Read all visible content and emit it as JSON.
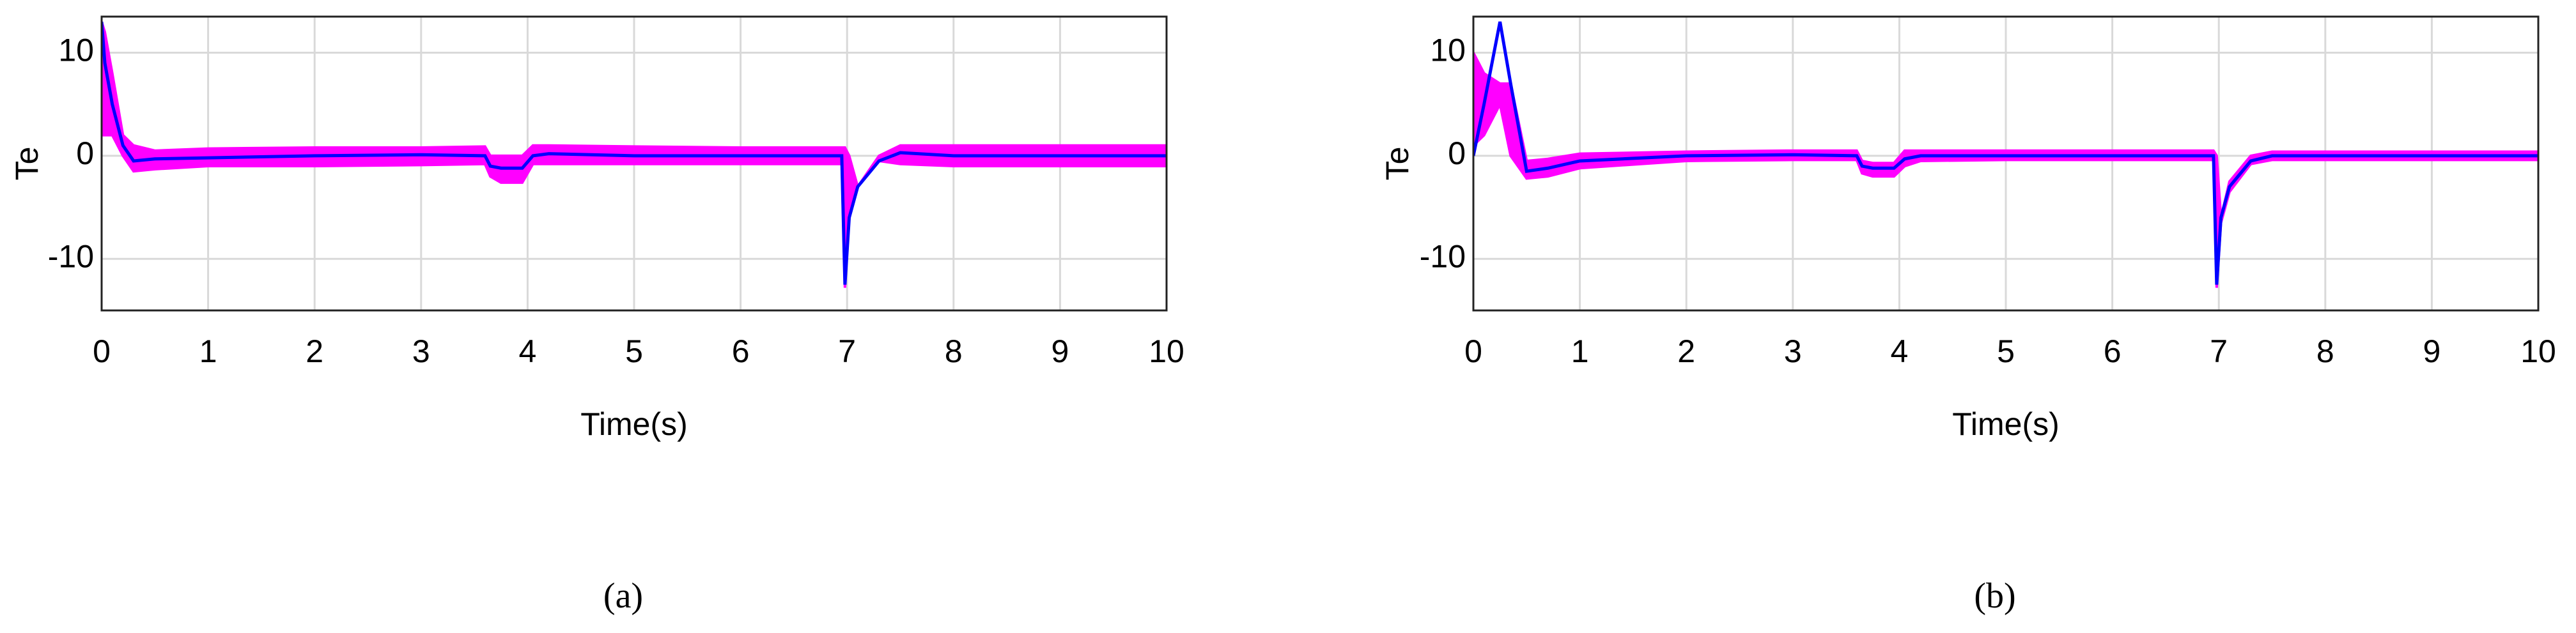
{
  "chart_data": [
    {
      "type": "line",
      "xlabel": "Time(s)",
      "ylabel": "Te",
      "caption": "(a)",
      "grid": true,
      "xlim": [
        0,
        10
      ],
      "xticks": [
        0,
        1,
        2,
        3,
        4,
        5,
        6,
        7,
        8,
        9,
        10
      ],
      "ylim": [
        -15,
        13.5
      ],
      "yticks": [
        -10,
        0,
        10
      ],
      "x": [
        0,
        0.03,
        0.1,
        0.2,
        0.3,
        0.5,
        1,
        2,
        3,
        3.6,
        3.65,
        3.75,
        3.95,
        4.05,
        4.2,
        5,
        6,
        6.95,
        6.98,
        7.02,
        7.1,
        7.3,
        7.5,
        8,
        9,
        10
      ],
      "series": [
        {
          "color": "#ff00ff",
          "values": [
            13,
            12,
            8,
            2,
            1,
            0.5,
            0.7,
            0.8,
            0.8,
            0.9,
            0,
            0,
            0,
            1,
            1,
            0.9,
            0.8,
            0.8,
            0.8,
            0,
            -3,
            0,
            1,
            1,
            1,
            1
          ],
          "low": [
            2,
            2,
            2,
            0,
            -1.5,
            -1.3,
            -1,
            -1,
            -0.9,
            -0.8,
            -2,
            -2.6,
            -2.6,
            -0.8,
            -0.8,
            -0.8,
            -0.8,
            -0.8,
            -12.8,
            -6,
            -3,
            -0.5,
            -0.8,
            -1,
            -1,
            -1
          ]
        },
        {
          "color": "#0000ff",
          "values": [
            13,
            9,
            5,
            1,
            -0.5,
            -0.3,
            -0.2,
            0,
            0.1,
            0,
            -1,
            -1.2,
            -1.2,
            0,
            0.2,
            0,
            0,
            0,
            -12.5,
            -6,
            -3,
            -0.5,
            0.3,
            0,
            0,
            0
          ]
        }
      ]
    },
    {
      "type": "line",
      "xlabel": "Time(s)",
      "ylabel": "Te",
      "caption": "(b)",
      "grid": true,
      "xlim": [
        0,
        10
      ],
      "xticks": [
        0,
        1,
        2,
        3,
        4,
        5,
        6,
        7,
        8,
        9,
        10
      ],
      "ylim": [
        -15,
        13.5
      ],
      "yticks": [
        -10,
        0,
        10
      ],
      "x": [
        0,
        0.1,
        0.25,
        0.35,
        0.5,
        0.7,
        1,
        2,
        3,
        3.6,
        3.65,
        3.75,
        3.95,
        4.05,
        4.2,
        5,
        6,
        6.95,
        6.98,
        7.02,
        7.1,
        7.3,
        7.5,
        8,
        9,
        10
      ],
      "series": [
        {
          "color": "#ff00ff",
          "values": [
            10,
            8,
            7,
            7,
            -0.5,
            -0.3,
            0.2,
            0.4,
            0.5,
            0.5,
            -0.5,
            -0.7,
            -0.7,
            0.5,
            0.5,
            0.5,
            0.5,
            0.5,
            0,
            -6,
            -2.5,
            0,
            0.4,
            0.4,
            0.4,
            0.4
          ],
          "low": [
            1,
            2,
            5,
            0,
            -2.2,
            -2,
            -1.2,
            -0.5,
            -0.4,
            -0.4,
            -1.7,
            -2,
            -2,
            -1,
            -0.5,
            -0.4,
            -0.4,
            -0.4,
            -12.8,
            -6.5,
            -3.5,
            -0.8,
            -0.4,
            -0.4,
            -0.4,
            -0.4
          ]
        },
        {
          "color": "#0000ff",
          "values": [
            0,
            5,
            13,
            7,
            -1.5,
            -1.2,
            -0.5,
            0,
            0.1,
            0,
            -1,
            -1.2,
            -1.2,
            -0.3,
            0,
            0,
            0,
            0,
            -12.5,
            -6,
            -3,
            -0.5,
            0,
            0,
            0,
            0
          ]
        }
      ]
    }
  ]
}
